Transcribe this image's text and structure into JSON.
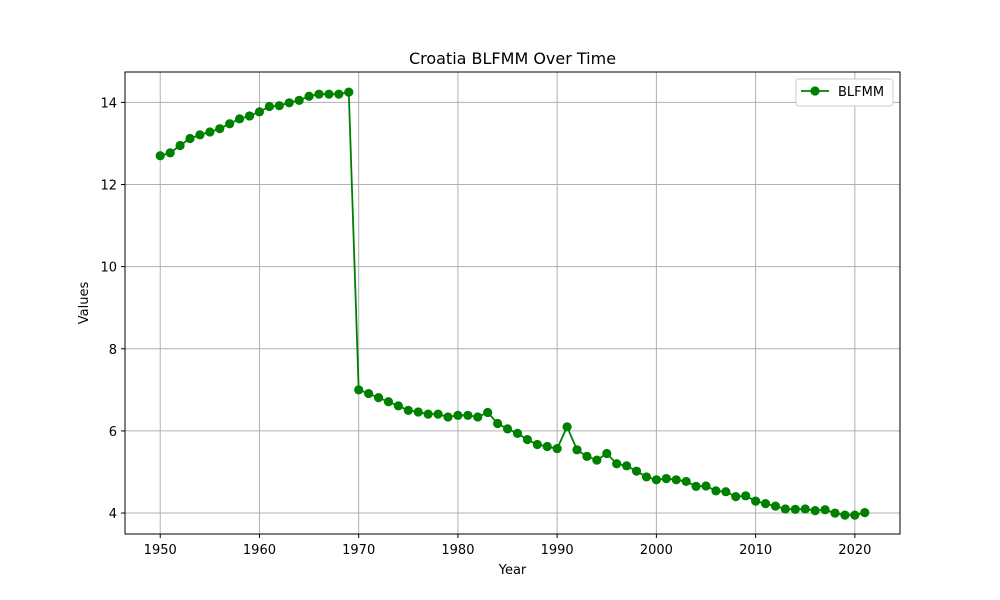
{
  "chart_data": {
    "type": "line",
    "title": "Croatia BLFMM Over Time",
    "xlabel": "Year",
    "ylabel": "Values",
    "xlim": [
      1946.45,
      2024.55
    ],
    "ylim": [
      3.49,
      14.74
    ],
    "xticks": [
      1950,
      1960,
      1970,
      1980,
      1990,
      2000,
      2010,
      2020
    ],
    "yticks": [
      4,
      6,
      8,
      10,
      12,
      14
    ],
    "grid": true,
    "legend": "top-right",
    "series": [
      {
        "name": "BLFMM",
        "color": "#008000",
        "marker": "circle",
        "x": [
          1950,
          1951,
          1952,
          1953,
          1954,
          1955,
          1956,
          1957,
          1958,
          1959,
          1960,
          1961,
          1962,
          1963,
          1964,
          1965,
          1966,
          1967,
          1968,
          1969,
          1970,
          1971,
          1972,
          1973,
          1974,
          1975,
          1976,
          1977,
          1978,
          1979,
          1980,
          1981,
          1982,
          1983,
          1984,
          1985,
          1986,
          1987,
          1988,
          1989,
          1990,
          1991,
          1992,
          1993,
          1994,
          1995,
          1996,
          1997,
          1998,
          1999,
          2000,
          2001,
          2002,
          2003,
          2004,
          2005,
          2006,
          2007,
          2008,
          2009,
          2010,
          2011,
          2012,
          2013,
          2014,
          2015,
          2016,
          2017,
          2018,
          2019,
          2020,
          2021
        ],
        "y": [
          12.7,
          12.77,
          12.95,
          13.12,
          13.21,
          13.28,
          13.36,
          13.48,
          13.6,
          13.67,
          13.77,
          13.9,
          13.92,
          13.99,
          14.05,
          14.15,
          14.2,
          14.2,
          14.2,
          14.25,
          7.0,
          6.91,
          6.81,
          6.71,
          6.61,
          6.5,
          6.46,
          6.41,
          6.41,
          6.34,
          6.38,
          6.38,
          6.34,
          6.45,
          6.18,
          6.05,
          5.94,
          5.79,
          5.67,
          5.62,
          5.57,
          6.1,
          5.54,
          5.38,
          5.29,
          5.45,
          5.2,
          5.15,
          5.02,
          4.88,
          4.81,
          4.84,
          4.81,
          4.77,
          4.65,
          4.66,
          4.54,
          4.52,
          4.4,
          4.42,
          4.29,
          4.23,
          4.17,
          4.1,
          4.09,
          4.1,
          4.06,
          4.08,
          4.0,
          3.95,
          3.95,
          4.01
        ]
      }
    ]
  }
}
